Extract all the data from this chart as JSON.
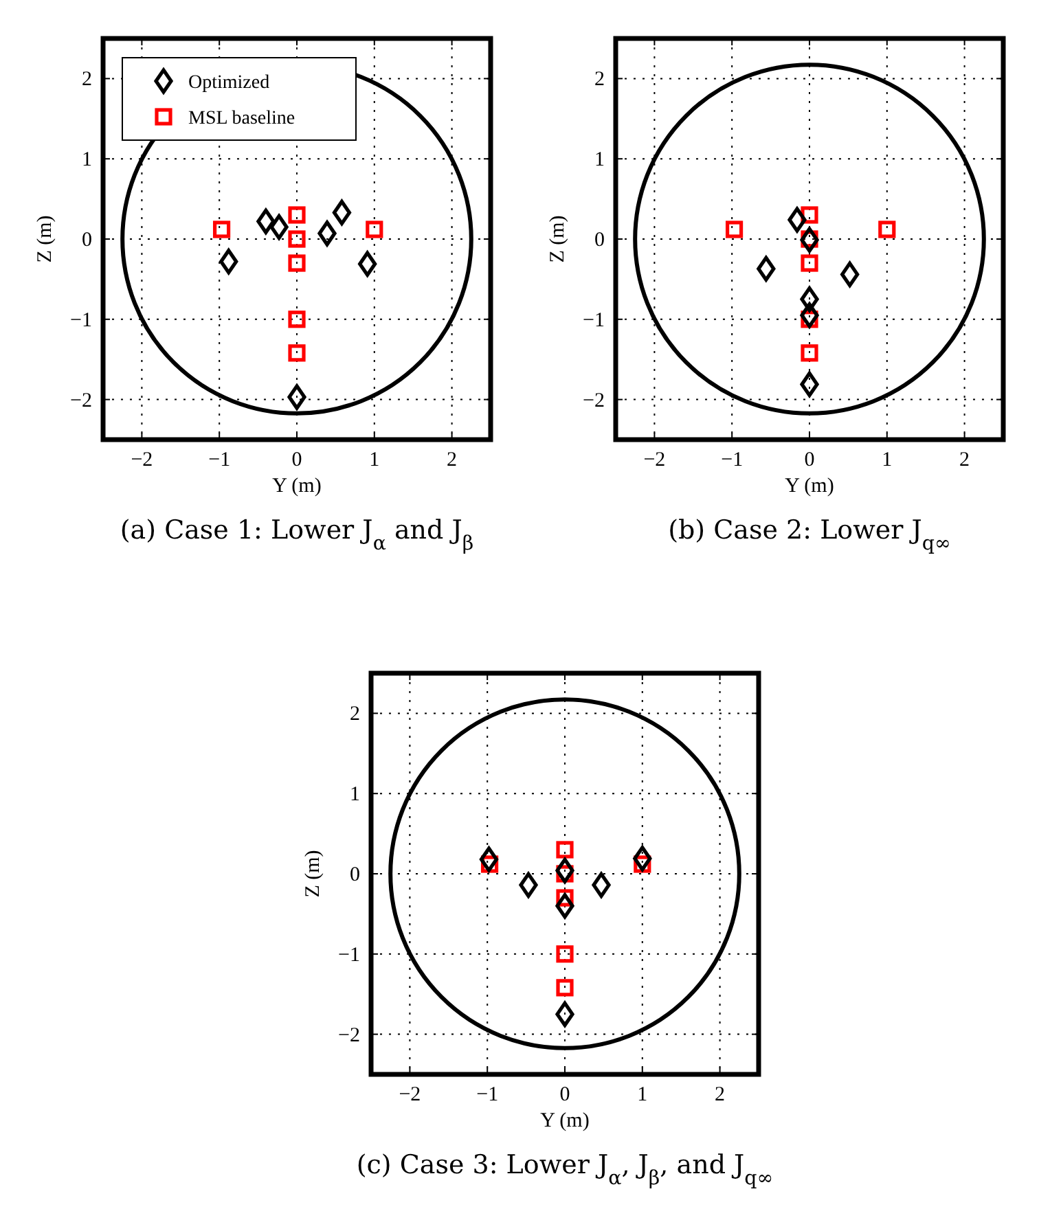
{
  "chart_data": [
    {
      "type": "scatter",
      "title": "(a) Case 1: Lower J$_{α}$ and J$_{β}$",
      "xlabel": "Y (m)",
      "ylabel": "Z (m)",
      "xlim": [
        -2.5,
        2.5
      ],
      "ylim": [
        -2.5,
        2.5
      ],
      "xticks": [
        -2,
        -1,
        0,
        1,
        2
      ],
      "yticks": [
        -2,
        -1,
        0,
        1,
        2
      ],
      "grid": true,
      "legend": "top left",
      "series": [
        {
          "name": "Optimized",
          "color": "#000000",
          "marker": "diamond",
          "x": [
            -0.4,
            -0.23,
            0.58,
            0.39,
            -0.88,
            0.91,
            0
          ],
          "values": [
            0.22,
            0.15,
            0.33,
            0.07,
            -0.28,
            -0.31,
            -1.97
          ]
        },
        {
          "name": "MSL baseline",
          "color": "#ff0000",
          "marker": "square",
          "x": [
            -0.97,
            0,
            0,
            0,
            1,
            0,
            0
          ],
          "values": [
            0.12,
            0.3,
            0,
            -0.3,
            0.12,
            -1,
            -1.42
          ]
        }
      ]
    },
    {
      "type": "scatter",
      "title": "(b) Case 2: Lower J$_{q∞}$",
      "xlabel": "Y (m)",
      "ylabel": "Z (m)",
      "xlim": [
        -2.5,
        2.5
      ],
      "ylim": [
        -2.5,
        2.5
      ],
      "xticks": [
        -2,
        -1,
        0,
        1,
        2
      ],
      "yticks": [
        -2,
        -1,
        0,
        1,
        2
      ],
      "grid": true,
      "series": [
        {
          "color": "#ff0000",
          "marker": "square",
          "x": [
            -0.97,
            0,
            0,
            0,
            1,
            0,
            0
          ],
          "values": [
            0.12,
            0.3,
            0,
            -0.3,
            0.12,
            -1,
            -1.42
          ]
        },
        {
          "color": "#000000",
          "marker": "diamond",
          "x": [
            -0.16,
            0,
            -0.56,
            0.52,
            0,
            0,
            0
          ],
          "values": [
            0.24,
            -0.01,
            -0.37,
            -0.44,
            -0.75,
            -0.95,
            -1.81
          ]
        }
      ]
    },
    {
      "type": "scatter",
      "title": "(c) Case 3: Lower J$_{α}$, J$_{β}$, and J$_{q∞}$",
      "xlabel": "Y (m)",
      "ylabel": "Z (m)",
      "xlim": [
        -2.5,
        2.5
      ],
      "ylim": [
        -2.5,
        2.5
      ],
      "xticks": [
        -2,
        -1,
        0,
        1,
        2
      ],
      "yticks": [
        -2,
        -1,
        0,
        1,
        2
      ],
      "grid": true,
      "series": [
        {
          "color": "#ff0000",
          "marker": "square",
          "x": [
            -0.97,
            0,
            0,
            0,
            1,
            0,
            0
          ],
          "values": [
            0.12,
            0.3,
            0,
            -0.3,
            0.12,
            -1,
            -1.42
          ]
        },
        {
          "color": "#000000",
          "marker": "diamond",
          "x": [
            -0.98,
            1,
            -0.47,
            0.47,
            0,
            0,
            0
          ],
          "values": [
            0.18,
            0.19,
            -0.14,
            -0.14,
            0.04,
            -0.4,
            -1.75
          ]
        }
      ]
    }
  ]
}
